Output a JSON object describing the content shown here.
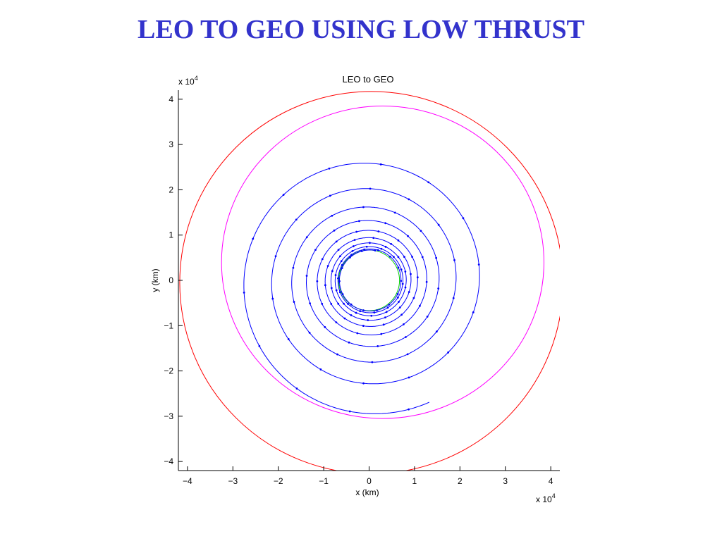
{
  "slide_title": "LEO TO GEO USING LOW THRUST",
  "chart_data": {
    "type": "line",
    "title": "LEO to GEO",
    "xlabel": "x (km)",
    "ylabel": "y (km)",
    "x_multiplier": "x 10",
    "x_exponent": "4",
    "y_multiplier": "x 10",
    "y_exponent": "4",
    "xlim": [
      -4.2,
      4.2
    ],
    "ylim": [
      -4.2,
      4.2
    ],
    "x_ticks": [
      -4,
      -3,
      -2,
      -1,
      0,
      1,
      2,
      3,
      4
    ],
    "y_ticks": [
      -4,
      -3,
      -2,
      -1,
      0,
      1,
      2,
      3,
      4
    ],
    "x_tick_labels": [
      "−4",
      "−3",
      "−2",
      "−1",
      "0",
      "1",
      "2",
      "3",
      "4"
    ],
    "y_tick_labels": [
      "−4",
      "−3",
      "−2",
      "−1",
      "0",
      "1",
      "2",
      "3",
      "4"
    ],
    "units_note": "values in units of 10^4 km",
    "grid": false,
    "series": [
      {
        "role": "geo-orbit",
        "color": "#ff0000",
        "shape": "circle",
        "center": [
          0.05,
          -0.05
        ],
        "radius": 4.22
      },
      {
        "role": "leo-orbit",
        "color": "#00cc00",
        "shape": "circle",
        "center": [
          0.0,
          0.0
        ],
        "radius": 0.67
      },
      {
        "role": "transfer-ellipse",
        "color": "#ff00ff",
        "shape": "ellipse",
        "center": [
          0.3,
          0.4
        ],
        "rx": 3.55,
        "ry": 3.45
      },
      {
        "role": "spiral-trajectory",
        "color": "#0000ff",
        "shape": "spiral",
        "r_start": 0.67,
        "r_end": 3.0,
        "turns": 9.6
      }
    ]
  }
}
